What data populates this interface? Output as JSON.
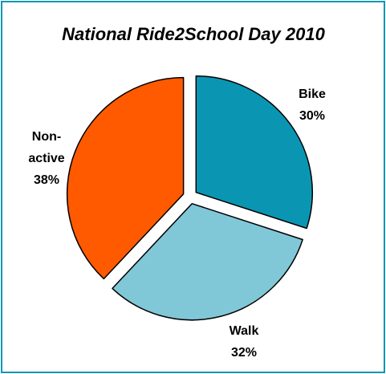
{
  "chart_data": {
    "type": "pie",
    "title": "National Ride2School Day 2010",
    "categories": [
      "Bike",
      "Walk",
      "Non-active"
    ],
    "values": [
      30,
      32,
      38
    ],
    "value_labels": [
      "30%",
      "32%",
      "38%"
    ],
    "colors": [
      "#0a96b2",
      "#80c8d8",
      "#ff5a00"
    ]
  }
}
